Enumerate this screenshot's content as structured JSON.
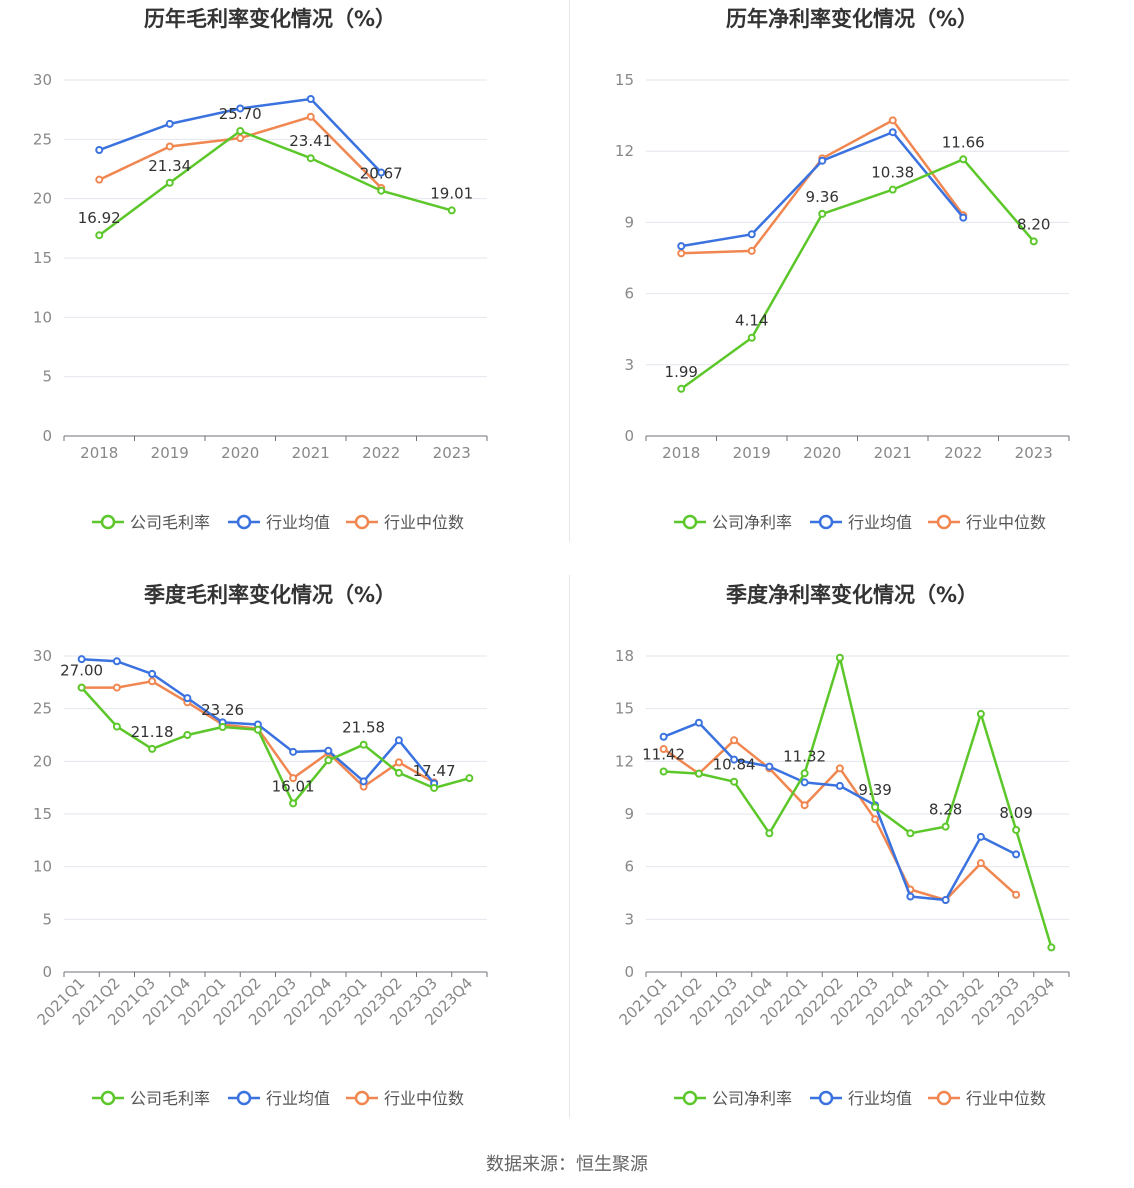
{
  "source_text": "数据来源：恒生聚源",
  "colors": {
    "company": "#5cc72a",
    "avg": "#3a72e0",
    "median": "#f08650"
  },
  "chart_data": [
    {
      "type": "line",
      "title": "历年毛利率变化情况（%）",
      "categories": [
        "2018",
        "2019",
        "2020",
        "2021",
        "2022",
        "2023"
      ],
      "ylim": [
        0,
        30
      ],
      "yticks": [
        0,
        5,
        10,
        15,
        20,
        25,
        30
      ],
      "series": [
        {
          "name": "公司毛利率",
          "color": "#5cc72a",
          "values": [
            16.92,
            21.34,
            25.7,
            23.41,
            20.67,
            19.01
          ],
          "labels": [
            "16.92",
            "21.34",
            "25.70",
            "23.41",
            "20.67",
            "19.01"
          ]
        },
        {
          "name": "行业均值",
          "color": "#3a72e0",
          "values": [
            24.1,
            26.3,
            27.6,
            28.4,
            22.2,
            null
          ]
        },
        {
          "name": "行业中位数",
          "color": "#f08650",
          "values": [
            21.6,
            24.4,
            25.1,
            26.9,
            20.9,
            null
          ]
        }
      ]
    },
    {
      "type": "line",
      "title": "历年净利率变化情况（%）",
      "categories": [
        "2018",
        "2019",
        "2020",
        "2021",
        "2022",
        "2023"
      ],
      "ylim": [
        0,
        15
      ],
      "yticks": [
        0,
        3,
        6,
        9,
        12,
        15
      ],
      "series": [
        {
          "name": "公司净利率",
          "color": "#5cc72a",
          "values": [
            1.99,
            4.14,
            9.36,
            10.38,
            11.66,
            8.2
          ],
          "labels": [
            "1.99",
            "4.14",
            "9.36",
            "10.38",
            "11.66",
            "8.20"
          ]
        },
        {
          "name": "行业均值",
          "color": "#3a72e0",
          "values": [
            8.0,
            8.5,
            11.6,
            12.8,
            9.2,
            null
          ]
        },
        {
          "name": "行业中位数",
          "color": "#f08650",
          "values": [
            7.7,
            7.8,
            11.7,
            13.3,
            9.3,
            null
          ]
        }
      ]
    },
    {
      "type": "line",
      "title": "季度毛利率变化情况（%）",
      "categories": [
        "2021Q1",
        "2021Q2",
        "2021Q3",
        "2021Q4",
        "2022Q1",
        "2022Q2",
        "2022Q3",
        "2022Q4",
        "2023Q1",
        "2023Q2",
        "2023Q3",
        "2023Q4"
      ],
      "ylim": [
        0,
        30
      ],
      "yticks": [
        0,
        5,
        10,
        15,
        20,
        25,
        30
      ],
      "series": [
        {
          "name": "公司毛利率",
          "color": "#5cc72a",
          "values": [
            27.0,
            23.3,
            21.18,
            22.5,
            23.26,
            23.0,
            16.01,
            20.1,
            21.58,
            18.9,
            17.47,
            18.4
          ],
          "labels": [
            "27.00",
            "",
            "21.18",
            "",
            "23.26",
            "",
            "16.01",
            "",
            "21.58",
            "",
            "17.47",
            ""
          ]
        },
        {
          "name": "行业均值",
          "color": "#3a72e0",
          "values": [
            29.7,
            29.5,
            28.3,
            26.0,
            23.7,
            23.5,
            20.9,
            21.0,
            18.1,
            22.0,
            17.9,
            null
          ]
        },
        {
          "name": "行业中位数",
          "color": "#f08650",
          "values": [
            27.0,
            27.0,
            27.6,
            25.6,
            23.5,
            23.1,
            18.4,
            20.8,
            17.6,
            19.9,
            18.0,
            null
          ]
        }
      ]
    },
    {
      "type": "line",
      "title": "季度净利率变化情况（%）",
      "categories": [
        "2021Q1",
        "2021Q2",
        "2021Q3",
        "2021Q4",
        "2022Q1",
        "2022Q2",
        "2022Q3",
        "2022Q4",
        "2023Q1",
        "2023Q2",
        "2023Q3",
        "2023Q4"
      ],
      "ylim": [
        0,
        18
      ],
      "yticks": [
        0,
        3,
        6,
        9,
        12,
        15,
        18
      ],
      "series": [
        {
          "name": "公司净利率",
          "color": "#5cc72a",
          "values": [
            11.42,
            11.3,
            10.84,
            7.9,
            11.32,
            17.9,
            9.39,
            7.9,
            8.28,
            14.7,
            8.09,
            1.4
          ],
          "labels": [
            "11.42",
            "",
            "10.84",
            "",
            "11.32",
            "",
            "9.39",
            "",
            "8.28",
            "",
            "8.09",
            ""
          ]
        },
        {
          "name": "行业均值",
          "color": "#3a72e0",
          "values": [
            13.4,
            14.2,
            12.1,
            11.7,
            10.8,
            10.6,
            9.5,
            4.3,
            4.1,
            7.7,
            6.7,
            null
          ]
        },
        {
          "name": "行业中位数",
          "color": "#f08650",
          "values": [
            12.7,
            11.3,
            13.2,
            11.6,
            9.5,
            11.6,
            8.7,
            4.7,
            4.1,
            6.2,
            4.4,
            null
          ]
        }
      ]
    }
  ]
}
